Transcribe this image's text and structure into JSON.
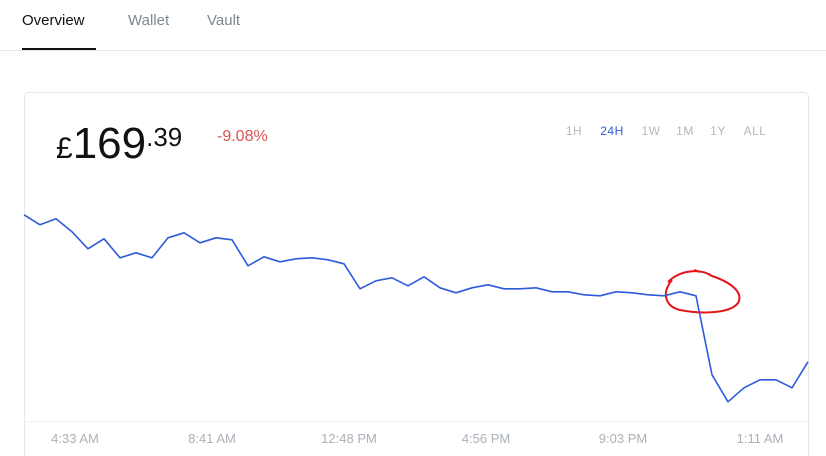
{
  "tabs": [
    {
      "label": "Overview",
      "active": true
    },
    {
      "label": "Wallet",
      "active": false
    },
    {
      "label": "Vault",
      "active": false
    }
  ],
  "price": {
    "currency": "£",
    "whole": "169",
    "fraction": ".39",
    "change": "-9.08%"
  },
  "ranges": [
    {
      "label": "1H",
      "active": false
    },
    {
      "label": "24H",
      "active": true
    },
    {
      "label": "1W",
      "active": false
    },
    {
      "label": "1M",
      "active": false
    },
    {
      "label": "1Y",
      "active": false
    },
    {
      "label": "ALL",
      "active": false
    }
  ],
  "chart_data": {
    "type": "line",
    "color": "#2e5bdb",
    "x_labels": [
      "4:33 AM",
      "8:41 AM",
      "12:48 PM",
      "4:56 PM",
      "9:03 PM",
      "1:11 AM"
    ],
    "ylim": [
      162.7,
      188.0
    ],
    "values": [
      186.3,
      185.15,
      185.84,
      184.34,
      182.39,
      183.54,
      181.35,
      181.93,
      181.35,
      183.65,
      184.23,
      183.08,
      183.65,
      183.42,
      180.43,
      181.47,
      180.89,
      181.24,
      181.35,
      181.12,
      180.66,
      177.79,
      178.71,
      179.05,
      178.13,
      179.17,
      177.9,
      177.33,
      177.9,
      178.25,
      177.79,
      177.79,
      177.9,
      177.44,
      177.44,
      177.1,
      176.98,
      177.44,
      177.33,
      177.1,
      176.98,
      177.44,
      176.98,
      167.9,
      164.79,
      166.4,
      167.32,
      167.32,
      166.4,
      169.39
    ]
  }
}
